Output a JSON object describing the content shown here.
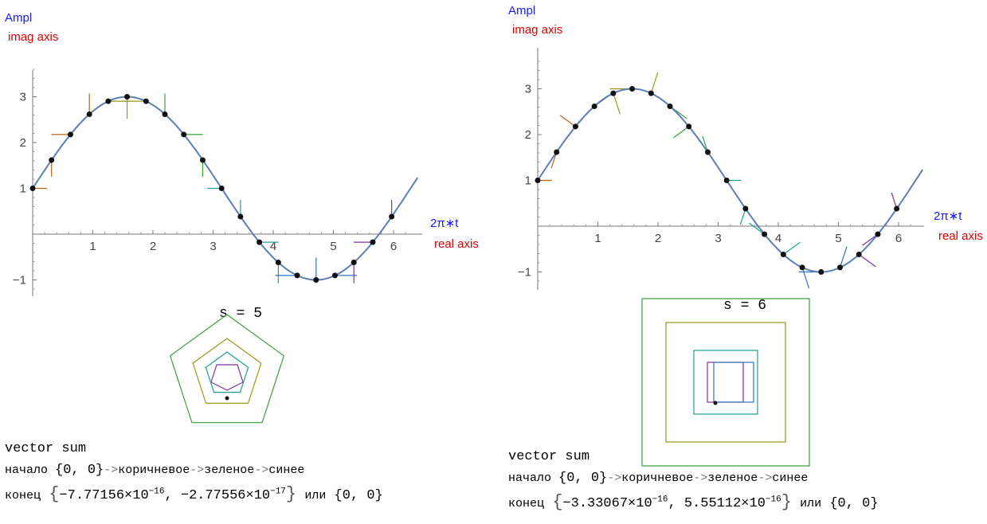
{
  "panels": [
    {
      "title": "s = 5",
      "s": 5,
      "ylabel": "Ampl",
      "ylabel2": "imag axis",
      "xlabel": "2π∗t",
      "xlabel2": "real axis",
      "xticks": [
        "1",
        "2",
        "3",
        "4",
        "5",
        "6"
      ],
      "yticks": [
        "−1",
        "1",
        "2",
        "3"
      ],
      "vector_sum_title": "vector sum",
      "start_label": "начало",
      "start_value": "{0, 0}",
      "order_arrow": "->",
      "order_brown": "коричневое",
      "order_green": "зеленое",
      "order_blue": "синее",
      "end_label": "конец",
      "end_x_mantissa": "−7.77156",
      "end_x_exp": "−16",
      "end_y_mantissa": "−2.77556",
      "end_y_exp": "−17",
      "times": "×10",
      "or_label": "или",
      "end_simple": "{0, 0}"
    },
    {
      "title": "s = 6",
      "s": 6,
      "ylabel": "Ampl",
      "ylabel2": "imag axis",
      "xlabel": "2π∗t",
      "xlabel2": "real axis",
      "xticks": [
        "1",
        "2",
        "3",
        "4",
        "5",
        "6"
      ],
      "yticks": [
        "−1",
        "1",
        "2",
        "3"
      ],
      "vector_sum_title": "vector sum",
      "start_label": "начало",
      "start_value": "{0, 0}",
      "order_arrow": "->",
      "order_brown": "коричневое",
      "order_green": "зеленое",
      "order_blue": "синее",
      "end_label": "конец",
      "end_x_mantissa": "−3.33067",
      "end_x_exp": "−16",
      "end_y_mantissa": "5.55112",
      "end_y_exp": "−16",
      "times": "×10",
      "or_label": "или",
      "end_simple": "{0, 0}"
    }
  ],
  "chart_data": [
    {
      "type": "line",
      "function": "1 + 2*sin(x)",
      "x_range": [
        0,
        6.283
      ],
      "xlim": [
        0,
        6.5
      ],
      "ylim": [
        -1.3,
        3.8
      ],
      "sample_points": 20,
      "series": [
        {
          "values": [
            1.0,
            1.618,
            2.176,
            2.618,
            2.902,
            3.0,
            2.902,
            2.618,
            2.176,
            1.618,
            1.0,
            0.382,
            -0.176,
            -0.618,
            -0.902,
            -1.0,
            -0.902,
            -0.618,
            -0.176,
            0.382
          ]
        }
      ],
      "curve_color": "#5b7fb5",
      "vector_colors": [
        "#b5651d",
        "#9a9a1a",
        "#3aa03a",
        "#20a090",
        "#3070c0",
        "#8030a0"
      ]
    },
    {
      "type": "line",
      "function": "1 + 2*sin(x)",
      "x_range": [
        0,
        6.283
      ],
      "xlim": [
        0,
        6.5
      ],
      "ylim": [
        -1.3,
        3.8
      ],
      "sample_points": 20,
      "series": [
        {
          "values": [
            1.0,
            1.618,
            2.176,
            2.618,
            2.902,
            3.0,
            2.902,
            2.618,
            2.176,
            1.618,
            1.0,
            0.382,
            -0.176,
            -0.618,
            -0.902,
            -1.0,
            -0.902,
            -0.618,
            -0.176,
            0.382
          ]
        }
      ],
      "curve_color": "#5b7fb5",
      "vector_colors": [
        "#b5651d",
        "#9a9a1a",
        "#3aa03a",
        "#20a090",
        "#3070c0",
        "#8030a0"
      ]
    }
  ]
}
